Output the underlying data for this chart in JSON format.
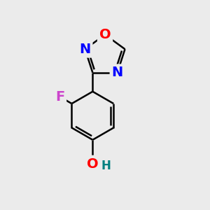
{
  "background_color": "#ebebeb",
  "bond_color": "#000000",
  "bond_width": 1.8,
  "atom_colors": {
    "O": "#ff0000",
    "N": "#0000ff",
    "F": "#cc44cc",
    "H_OH": "#008080",
    "C": "#000000"
  },
  "font_size_atoms": 14,
  "figsize": [
    3.0,
    3.0
  ],
  "dpi": 100
}
